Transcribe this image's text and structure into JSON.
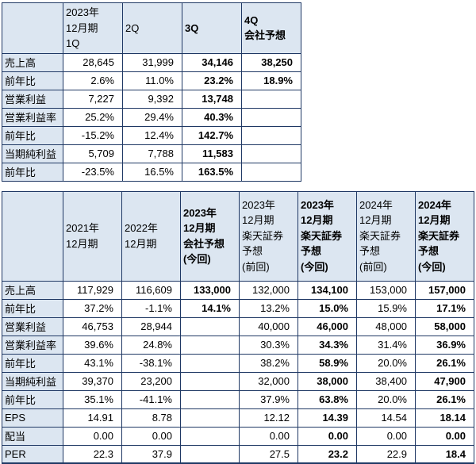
{
  "colors": {
    "header_background": "#DCE6F1",
    "border": "#1F3864",
    "text": "#000000",
    "cell_background": "#FFFFFF"
  },
  "chart_data": [
    {
      "type": "table",
      "name": "quarterly-results",
      "title": "",
      "columns": [
        {
          "label_lines": [
            "2023年",
            "12月期",
            "1Q"
          ],
          "bold": false
        },
        {
          "label_lines": [
            "2Q"
          ],
          "bold": false
        },
        {
          "label_lines": [
            "3Q"
          ],
          "bold": true
        },
        {
          "label_lines": [
            "4Q",
            "会社予想"
          ],
          "bold": true
        }
      ],
      "rows": [
        {
          "label": "売上高",
          "values": [
            "28,645",
            "31,999",
            "34,146",
            "38,250"
          ]
        },
        {
          "label": "前年比",
          "values": [
            "2.6%",
            "11.0%",
            "23.2%",
            "18.9%"
          ]
        },
        {
          "label": "営業利益",
          "values": [
            "7,227",
            "9,392",
            "13,748",
            ""
          ]
        },
        {
          "label": "営業利益率",
          "values": [
            "25.2%",
            "29.4%",
            "40.3%",
            ""
          ]
        },
        {
          "label": "前年比",
          "values": [
            "-15.2%",
            "12.4%",
            "142.7%",
            ""
          ]
        },
        {
          "label": "当期純利益",
          "values": [
            "5,709",
            "7,788",
            "11,583",
            ""
          ]
        },
        {
          "label": "前年比",
          "values": [
            "-23.5%",
            "16.5%",
            "163.5%",
            ""
          ]
        }
      ]
    },
    {
      "type": "table",
      "name": "annual-forecast",
      "title": "",
      "columns": [
        {
          "label_lines": [
            "2021年",
            "12月期"
          ],
          "bold": false
        },
        {
          "label_lines": [
            "2022年",
            "12月期"
          ],
          "bold": false
        },
        {
          "label_lines": [
            "2023年",
            "12月期",
            "会社予想",
            "(今回)"
          ],
          "bold": true
        },
        {
          "label_lines": [
            "2023年",
            "12月期",
            "楽天証券",
            "予想",
            "(前回)"
          ],
          "bold": false
        },
        {
          "label_lines": [
            "2023年",
            "12月期",
            "楽天証券",
            "予想",
            "(今回)"
          ],
          "bold": true
        },
        {
          "label_lines": [
            "2024年",
            "12月期",
            "楽天証券",
            "予想",
            "(前回)"
          ],
          "bold": false
        },
        {
          "label_lines": [
            "2024年",
            "12月期",
            "楽天証券",
            "予想",
            "(今回)"
          ],
          "bold": true
        }
      ],
      "rows": [
        {
          "label": "売上高",
          "values": [
            "117,929",
            "116,609",
            "133,000",
            "132,000",
            "134,100",
            "153,000",
            "157,000"
          ]
        },
        {
          "label": "前年比",
          "values": [
            "37.2%",
            "-1.1%",
            "14.1%",
            "13.2%",
            "15.0%",
            "15.9%",
            "17.1%"
          ]
        },
        {
          "label": "営業利益",
          "values": [
            "46,753",
            "28,944",
            "",
            "40,000",
            "46,000",
            "48,000",
            "58,000"
          ]
        },
        {
          "label": "営業利益率",
          "values": [
            "39.6%",
            "24.8%",
            "",
            "30.3%",
            "34.3%",
            "31.4%",
            "36.9%"
          ]
        },
        {
          "label": "前年比",
          "values": [
            "43.1%",
            "-38.1%",
            "",
            "38.2%",
            "58.9%",
            "20.0%",
            "26.1%"
          ]
        },
        {
          "label": "当期純利益",
          "values": [
            "39,370",
            "23,200",
            "",
            "32,000",
            "38,000",
            "38,400",
            "47,900"
          ]
        },
        {
          "label": "前年比",
          "values": [
            "35.1%",
            "-41.1%",
            "",
            "37.9%",
            "63.8%",
            "20.0%",
            "26.1%"
          ]
        },
        {
          "label": "EPS",
          "values": [
            "14.91",
            "8.78",
            "",
            "12.12",
            "14.39",
            "14.54",
            "18.14"
          ]
        },
        {
          "label": "配当",
          "values": [
            "0.00",
            "0.00",
            "",
            "0.00",
            "0.00",
            "0.00",
            "0.00"
          ]
        },
        {
          "label": "PER",
          "values": [
            "22.3",
            "37.9",
            "",
            "27.5",
            "23.2",
            "22.9",
            "18.4"
          ]
        }
      ]
    }
  ]
}
